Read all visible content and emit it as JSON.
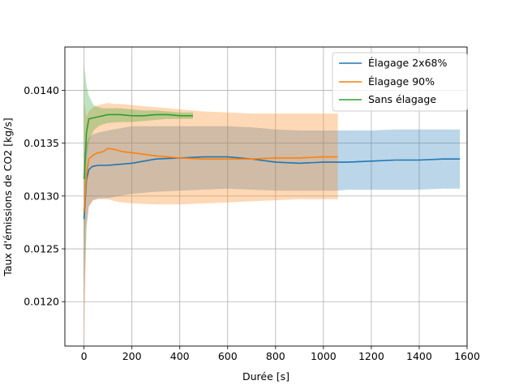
{
  "chart_data": {
    "type": "line",
    "title": "",
    "xlabel": "Durée [s]",
    "ylabel": "Taux d'émissions de CO2 [kg/s]",
    "xlim": [
      -80,
      1600
    ],
    "ylim": [
      0.01158,
      0.01441
    ],
    "grid": true,
    "legend_position": "upper-right",
    "x_ticks": [
      0,
      200,
      400,
      600,
      800,
      1000,
      1200,
      1400,
      1600
    ],
    "y_ticks": [
      0.012,
      0.0125,
      0.013,
      0.0135,
      0.014
    ],
    "x_tick_labels": [
      "0",
      "200",
      "400",
      "600",
      "800",
      "1000",
      "1200",
      "1400",
      "1600"
    ],
    "y_tick_labels": [
      "0.0120",
      "0.0125",
      "0.0130",
      "0.0135",
      "0.0140"
    ],
    "series": [
      {
        "name": "Élagage 2x68%",
        "color": "#1f77b4",
        "x": [
          0,
          10,
          20,
          35,
          60,
          100,
          150,
          200,
          250,
          300,
          400,
          500,
          600,
          700,
          800,
          900,
          1000,
          1060,
          1100,
          1200,
          1300,
          1400,
          1500,
          1570
        ],
        "y": [
          0.01278,
          0.01315,
          0.01325,
          0.01328,
          0.01329,
          0.01329,
          0.0133,
          0.01331,
          0.01333,
          0.01335,
          0.01336,
          0.01337,
          0.01337,
          0.01335,
          0.01332,
          0.01331,
          0.01332,
          0.01332,
          0.01332,
          0.01333,
          0.01334,
          0.01334,
          0.01335,
          0.01335
        ],
        "lower": [
          0.012,
          0.0127,
          0.0129,
          0.01296,
          0.01298,
          0.01298,
          0.013,
          0.01302,
          0.01303,
          0.01304,
          0.01305,
          0.01306,
          0.01307,
          0.01306,
          0.01305,
          0.01305,
          0.01305,
          0.01305,
          0.01306,
          0.01306,
          0.01306,
          0.01306,
          0.01307,
          0.01307
        ],
        "upper": [
          0.0134,
          0.0135,
          0.01355,
          0.01358,
          0.0136,
          0.01362,
          0.01364,
          0.01366,
          0.01366,
          0.01366,
          0.01366,
          0.01366,
          0.01366,
          0.01365,
          0.01363,
          0.01362,
          0.01362,
          0.01362,
          0.01362,
          0.01362,
          0.01363,
          0.01363,
          0.01363,
          0.01363
        ]
      },
      {
        "name": "Élagage 90%",
        "color": "#ff7f0e",
        "x": [
          0,
          10,
          20,
          40,
          60,
          80,
          100,
          130,
          160,
          200,
          300,
          400,
          500,
          600,
          700,
          800,
          900,
          1000,
          1060
        ],
        "y": [
          0.01285,
          0.0132,
          0.01335,
          0.01339,
          0.01341,
          0.01342,
          0.01345,
          0.01344,
          0.01342,
          0.01341,
          0.01338,
          0.01336,
          0.01335,
          0.01335,
          0.01335,
          0.01336,
          0.01336,
          0.01337,
          0.01337
        ],
        "lower": [
          0.0115,
          0.0127,
          0.0129,
          0.01296,
          0.01297,
          0.01297,
          0.01297,
          0.01295,
          0.01294,
          0.01293,
          0.01292,
          0.01292,
          0.01293,
          0.01294,
          0.01295,
          0.01296,
          0.01297,
          0.01297,
          0.01297
        ],
        "upper": [
          0.0139,
          0.01375,
          0.0138,
          0.01384,
          0.01386,
          0.01387,
          0.01388,
          0.01387,
          0.01387,
          0.01386,
          0.01384,
          0.01382,
          0.0138,
          0.01379,
          0.01378,
          0.01378,
          0.01378,
          0.01378,
          0.01378
        ]
      },
      {
        "name": "Sans élagage",
        "color": "#2ca02c",
        "x": [
          0,
          5,
          10,
          20,
          40,
          60,
          80,
          100,
          150,
          200,
          250,
          300,
          350,
          400,
          455
        ],
        "y": [
          0.01316,
          0.01335,
          0.0136,
          0.01373,
          0.01374,
          0.01375,
          0.01376,
          0.01377,
          0.01377,
          0.01376,
          0.01376,
          0.01377,
          0.01377,
          0.01376,
          0.01376
        ],
        "lower": [
          0.012,
          0.013,
          0.01335,
          0.01352,
          0.01362,
          0.01366,
          0.01368,
          0.01369,
          0.0137,
          0.0137,
          0.01371,
          0.01372,
          0.01373,
          0.01373,
          0.01373
        ],
        "upper": [
          0.01425,
          0.01415,
          0.01405,
          0.01395,
          0.01386,
          0.01384,
          0.01383,
          0.01383,
          0.01383,
          0.01382,
          0.01381,
          0.01381,
          0.0138,
          0.01379,
          0.01379
        ]
      }
    ]
  }
}
